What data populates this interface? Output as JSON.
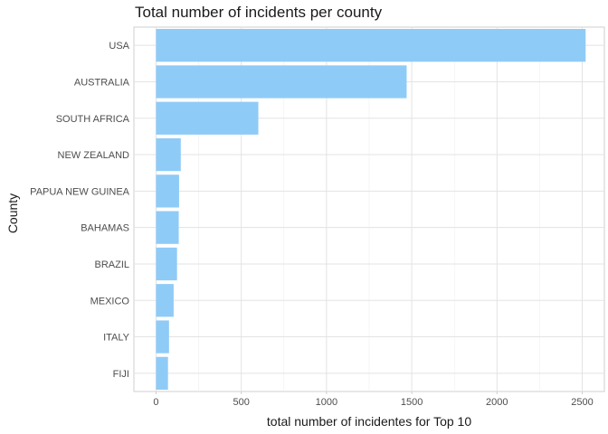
{
  "chart_data": {
    "type": "bar",
    "orientation": "horizontal",
    "title": "Total number of incidents per county",
    "xlabel": "total number of incidentes for Top 10",
    "ylabel": "County",
    "categories": [
      "USA",
      "AUSTRALIA",
      "SOUTH AFRICA",
      "NEW ZEALAND",
      "PAPUA NEW GUINEA",
      "BAHAMAS",
      "BRAZIL",
      "MEXICO",
      "ITALY",
      "FIJI"
    ],
    "values": [
      2520,
      1470,
      600,
      145,
      135,
      133,
      123,
      103,
      76,
      70
    ],
    "xlim": [
      -130,
      2630
    ],
    "xticks": [
      0,
      500,
      1000,
      1500,
      2000,
      2500
    ],
    "xtick_labels": [
      "0",
      "500",
      "1000",
      "1500",
      "2000",
      "2500"
    ],
    "grid": true,
    "bar_color": "#8FCBF7"
  }
}
